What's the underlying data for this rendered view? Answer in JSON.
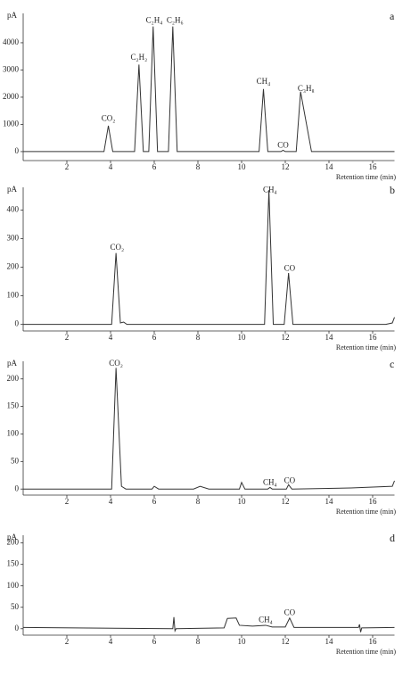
{
  "chart_data": [
    {
      "type": "line",
      "label": "a",
      "y_unit": "pA",
      "xlabel": "Retention time (min)",
      "color": "#333333",
      "xlim": [
        0,
        17
      ],
      "xticks": [
        2,
        4,
        6,
        8,
        10,
        12,
        14,
        16
      ],
      "ylim": [
        -330,
        5080
      ],
      "yticks": [
        0,
        1000,
        2000,
        3000,
        4000
      ],
      "x": [
        0,
        3.7,
        3.9,
        4.1,
        5.1,
        5.3,
        5.5,
        5.75,
        5.95,
        6.15,
        6.65,
        6.85,
        7.05,
        10.8,
        11.0,
        11.2,
        11.8,
        11.9,
        12.0,
        12.5,
        12.7,
        13.2,
        17
      ],
      "values": [
        0,
        0,
        950,
        0,
        0,
        3200,
        0,
        0,
        4600,
        0,
        0,
        4600,
        0,
        0,
        2300,
        0,
        0,
        50,
        0,
        0,
        2200,
        0,
        0
      ],
      "annotations": [
        {
          "text": "CO₂",
          "x": 3.9,
          "y": 1200
        },
        {
          "text": "C₂H₂",
          "x": 5.3,
          "y": 3450
        },
        {
          "text": "C₂H₄",
          "x": 6.0,
          "y": 4800
        },
        {
          "text": "C₂H₆",
          "x": 6.95,
          "y": 4800
        },
        {
          "text": "CH₄",
          "x": 11.0,
          "y": 2550
        },
        {
          "text": "CO",
          "x": 11.9,
          "y": 220
        },
        {
          "text": "C₃H₈",
          "x": 12.95,
          "y": 2300
        }
      ]
    },
    {
      "type": "line",
      "label": "b",
      "y_unit": "pA",
      "xlabel": "Retention time (min)",
      "color": "#333333",
      "xlim": [
        0,
        17
      ],
      "xticks": [
        2,
        4,
        6,
        8,
        10,
        12,
        14,
        16
      ],
      "ylim": [
        -23,
        480
      ],
      "yticks": [
        0,
        100,
        200,
        300,
        400
      ],
      "x": [
        0,
        4.05,
        4.25,
        4.45,
        4.6,
        4.75,
        11.05,
        11.25,
        11.45,
        11.95,
        12.15,
        12.35,
        16.6,
        16.9,
        17
      ],
      "values": [
        0,
        0,
        250,
        5,
        8,
        0,
        0,
        470,
        0,
        0,
        180,
        0,
        0,
        5,
        25
      ],
      "annotations": [
        {
          "text": "CO₂",
          "x": 4.3,
          "y": 268
        },
        {
          "text": "CH₄",
          "x": 11.3,
          "y": 470
        },
        {
          "text": "CO",
          "x": 12.2,
          "y": 195
        }
      ]
    },
    {
      "type": "line",
      "label": "c",
      "y_unit": "pA",
      "xlabel": "Retention time (min)",
      "color": "#333333",
      "xlim": [
        0,
        17
      ],
      "xticks": [
        2,
        4,
        6,
        8,
        10,
        12,
        14,
        16
      ],
      "ylim": [
        -11,
        232
      ],
      "yticks": [
        0,
        50,
        100,
        150,
        200
      ],
      "x": [
        0,
        4.05,
        4.25,
        4.5,
        4.7,
        5.9,
        6.0,
        6.2,
        7.8,
        8.1,
        8.5,
        9.9,
        10.0,
        10.15,
        11.2,
        11.3,
        11.4,
        12.05,
        12.15,
        12.3,
        15,
        16.9,
        17
      ],
      "values": [
        0,
        0,
        220,
        5,
        0,
        0,
        5,
        0,
        0,
        5,
        0,
        0,
        12,
        0,
        0,
        3,
        0,
        0,
        8,
        0,
        2,
        5,
        15
      ],
      "annotations": [
        {
          "text": "CO₂",
          "x": 4.25,
          "y": 227
        },
        {
          "text": "CH₄",
          "x": 11.3,
          "y": 11
        },
        {
          "text": "CO",
          "x": 12.2,
          "y": 14
        }
      ]
    },
    {
      "type": "line",
      "label": "d",
      "y_unit": "pA",
      "xlabel": "Retention time (min)",
      "color": "#333333",
      "xlim": [
        0,
        17
      ],
      "xticks": [
        2,
        4,
        6,
        8,
        10,
        12,
        14,
        16
      ],
      "ylim": [
        -15,
        218
      ],
      "yticks": [
        0,
        50,
        100,
        150,
        200
      ],
      "x": [
        0,
        6.85,
        6.9,
        6.95,
        7.0,
        9.2,
        9.35,
        9.75,
        9.9,
        10.5,
        11.1,
        11.4,
        12.0,
        12.2,
        12.4,
        15.35,
        15.4,
        15.45,
        15.5,
        17
      ],
      "values": [
        3,
        0,
        27,
        -5,
        0,
        2,
        24,
        25,
        8,
        6,
        8,
        4,
        4,
        25,
        3,
        3,
        10,
        -8,
        2,
        3
      ],
      "annotations": [
        {
          "text": "CH₄",
          "x": 11.1,
          "y": 19
        },
        {
          "text": "CO",
          "x": 12.2,
          "y": 36
        }
      ]
    }
  ]
}
